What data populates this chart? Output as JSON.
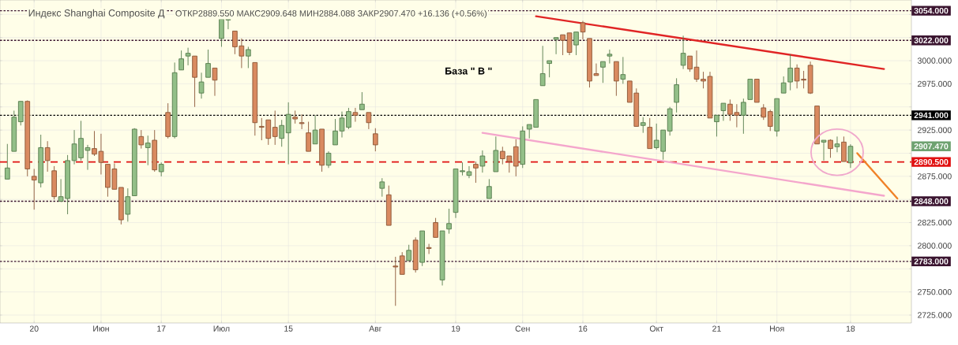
{
  "chart_data": {
    "type": "candlestick",
    "title": "Индекс Shanghai Composite Д",
    "subtitle": "ОТКР2889.550 МАКС2909.648 МИН2884.088 ЗАКР2907.470 +16.136 (+0.56%)",
    "annotations": [
      "База  \" В \"",
      "2907.470"
    ],
    "categories": [
      null,
      null,
      null,
      null,
      "20",
      null,
      null,
      null,
      null,
      null,
      null,
      null,
      null,
      null,
      "Июн",
      null,
      null,
      null,
      null,
      null,
      null,
      null,
      null,
      "17",
      null,
      null,
      null,
      null,
      null,
      null,
      null,
      null,
      "Июл",
      null,
      null,
      null,
      null,
      null,
      null,
      null,
      null,
      null,
      "15",
      null,
      null,
      null,
      null,
      null,
      null,
      null,
      null,
      null,
      null,
      null,
      null,
      "Авг",
      null,
      null,
      null,
      null,
      null,
      null,
      null,
      null,
      null,
      null,
      null,
      "19",
      null,
      null,
      null,
      null,
      null,
      null,
      null,
      null,
      null,
      "Сен",
      null,
      null,
      null,
      null,
      null,
      null,
      null,
      null,
      "16",
      null,
      null,
      null,
      null,
      null,
      null,
      null,
      null,
      null,
      null,
      "Окт",
      null,
      null,
      null,
      null,
      null,
      null,
      null,
      null,
      "21",
      null,
      null,
      null,
      null,
      null,
      null,
      null,
      null,
      "Ноя",
      null,
      null,
      null,
      null,
      null,
      null,
      null,
      null,
      null,
      null,
      "18",
      null,
      null,
      null,
      null,
      null,
      null,
      null,
      null
    ],
    "ohlc": [
      [
        2872,
        2910,
        2872,
        2884
      ],
      [
        2902,
        2946,
        2902,
        2939
      ],
      [
        2934,
        2956,
        2930,
        2956
      ],
      [
        2956,
        2957,
        2875,
        2883
      ],
      [
        2875,
        2883,
        2839,
        2871
      ],
      [
        2868,
        2920,
        2863,
        2906
      ],
      [
        2906,
        2913,
        2880,
        2892
      ],
      [
        2881,
        2886,
        2850,
        2853
      ],
      [
        2848,
        2872,
        2848,
        2853
      ],
      [
        2851,
        2898,
        2834,
        2892
      ],
      [
        2892,
        2925,
        2888,
        2910
      ],
      [
        2895,
        2935,
        2892,
        2916
      ],
      [
        2903,
        2909,
        2882,
        2906
      ],
      [
        2905,
        2924,
        2897,
        2899
      ],
      [
        2902,
        2921,
        2877,
        2890
      ],
      [
        2888,
        2888,
        2853,
        2863
      ],
      [
        2883,
        2889,
        2861,
        2861
      ],
      [
        2863,
        2863,
        2823,
        2828
      ],
      [
        2834,
        2862,
        2826,
        2853
      ],
      [
        2854,
        2927,
        2854,
        2926
      ],
      [
        2918,
        2925,
        2905,
        2909
      ],
      [
        2906,
        2919,
        2887,
        2911
      ],
      [
        2914,
        2925,
        2880,
        2882
      ],
      [
        2880,
        2890,
        2875,
        2888
      ],
      [
        2944,
        2954,
        2916,
        2918
      ],
      [
        2918,
        2998,
        2916,
        2987
      ],
      [
        2990,
        3011,
        2990,
        3002
      ],
      [
        3005,
        3014,
        2995,
        3008
      ],
      [
        3005,
        3005,
        2950,
        2982
      ],
      [
        2965,
        2987,
        2959,
        2977
      ],
      [
        2982,
        3012,
        2982,
        2997
      ],
      [
        2992,
        2992,
        2962,
        2979
      ],
      [
        3024,
        3045,
        3015,
        3045
      ],
      [
        3044,
        3045,
        3034,
        3045
      ],
      [
        3032,
        3032,
        3007,
        3015
      ],
      [
        3016,
        3024,
        2992,
        3005
      ],
      [
        3005,
        3015,
        2992,
        3012
      ],
      [
        2998,
        2998,
        2919,
        2933
      ],
      [
        2929,
        2938,
        2914,
        2928
      ],
      [
        2936,
        2936,
        2909,
        2916
      ],
      [
        2928,
        2946,
        2909,
        2918
      ],
      [
        2916,
        2936,
        2907,
        2930
      ],
      [
        2922,
        2955,
        2888,
        2942
      ],
      [
        2939,
        2946,
        2932,
        2937
      ],
      [
        2933,
        2942,
        2926,
        2932
      ],
      [
        2922,
        2934,
        2902,
        2902
      ],
      [
        2910,
        2941,
        2910,
        2925
      ],
      [
        2926,
        2926,
        2880,
        2887
      ],
      [
        2887,
        2902,
        2884,
        2900
      ],
      [
        2909,
        2937,
        2909,
        2924
      ],
      [
        2924,
        2945,
        2917,
        2938
      ],
      [
        2928,
        2949,
        2926,
        2945
      ],
      [
        2944,
        2949,
        2934,
        2941
      ],
      [
        2947,
        2966,
        2947,
        2953
      ],
      [
        2944,
        2944,
        2926,
        2933
      ],
      [
        2921,
        2927,
        2902,
        2909
      ],
      [
        2862,
        2873,
        2853,
        2869
      ],
      [
        2855,
        2865,
        2822,
        2822
      ],
      [
        2778,
        2788,
        2735,
        2777
      ],
      [
        2789,
        2793,
        2769,
        2769
      ],
      [
        2784,
        2801,
        2784,
        2795
      ],
      [
        2806,
        2809,
        2771,
        2774
      ],
      [
        2782,
        2816,
        2778,
        2816
      ],
      [
        2798,
        2802,
        2791,
        2797
      ],
      [
        2825,
        2830,
        2809,
        2809
      ],
      [
        2763,
        2816,
        2757,
        2816
      ],
      [
        2818,
        2840,
        2813,
        2824
      ],
      [
        2836,
        2883,
        2830,
        2883
      ],
      [
        2880,
        2890,
        2876,
        2881
      ],
      [
        2876,
        2886,
        2873,
        2880
      ],
      [
        2888,
        2891,
        2868,
        2884
      ],
      [
        2886,
        2903,
        2879,
        2897
      ],
      [
        2851,
        2872,
        2851,
        2864
      ],
      [
        2880,
        2918,
        2880,
        2903
      ],
      [
        2902,
        2907,
        2888,
        2894
      ],
      [
        2897,
        2897,
        2879,
        2891
      ],
      [
        2907,
        2915,
        2875,
        2886
      ],
      [
        2888,
        2929,
        2884,
        2924
      ],
      [
        2926,
        2931,
        2916,
        2931
      ],
      [
        2928,
        2958,
        2928,
        2958
      ],
      [
        2973,
        3016,
        2973,
        2986
      ],
      [
        2997,
        3000,
        2982,
        3000
      ],
      [
        3023,
        3025,
        3007,
        3025
      ],
      [
        3028,
        3028,
        3006,
        3022
      ],
      [
        3030,
        3030,
        3006,
        3009
      ],
      [
        3017,
        3031,
        3006,
        3031
      ],
      [
        3041,
        3043,
        3023,
        3031
      ],
      [
        3024,
        3024,
        2971,
        2978
      ],
      [
        2986,
        2997,
        2984,
        2984
      ],
      [
        2993,
        2999,
        2976,
        2999
      ],
      [
        3005,
        3012,
        2997,
        3007
      ],
      [
        2999,
        2999,
        2962,
        2978
      ],
      [
        2980,
        3004,
        2975,
        2985
      ],
      [
        2978,
        2978,
        2955,
        2955
      ],
      [
        2965,
        2970,
        2929,
        2929
      ],
      [
        2930,
        2939,
        2922,
        2933
      ],
      [
        2928,
        2938,
        2905,
        2905
      ],
      [
        2906,
        2932,
        2904,
        2914
      ],
      [
        2902,
        2925,
        2893,
        2925
      ],
      [
        2924,
        2950,
        2919,
        2948
      ],
      [
        2955,
        2981,
        2944,
        2974
      ],
      [
        2995,
        3027,
        2991,
        3008
      ],
      [
        3005,
        3005,
        2988,
        2991
      ],
      [
        2993,
        3011,
        2977,
        2980
      ],
      [
        2980,
        2988,
        2970,
        2978
      ],
      [
        2983,
        2988,
        2938,
        2938
      ],
      [
        2934,
        2941,
        2918,
        2941
      ],
      [
        2946,
        2954,
        2935,
        2954
      ],
      [
        2953,
        2958,
        2935,
        2942
      ],
      [
        2944,
        2953,
        2928,
        2941
      ],
      [
        2941,
        2959,
        2921,
        2955
      ],
      [
        2958,
        2980,
        2958,
        2980
      ],
      [
        2980,
        2980,
        2955,
        2955
      ],
      [
        2949,
        2953,
        2936,
        2939
      ],
      [
        2945,
        2947,
        2924,
        2929
      ],
      [
        2924,
        2959,
        2918,
        2959
      ],
      [
        2965,
        2983,
        2965,
        2976
      ],
      [
        2977,
        3007,
        2968,
        2992
      ],
      [
        2992,
        2996,
        2970,
        2978
      ],
      [
        2980,
        2989,
        2970,
        2979
      ],
      [
        2995,
        2999,
        2964,
        2965
      ],
      [
        2951,
        2951,
        2910,
        2910
      ],
      [
        2912,
        2914,
        2892,
        2914
      ],
      [
        2914,
        2915,
        2895,
        2905
      ],
      [
        2907,
        2918,
        2901,
        2910
      ],
      [
        2912,
        2918,
        2891,
        2891
      ],
      [
        2889.55,
        2909.65,
        2884.09,
        2907.47
      ],
      null,
      null,
      null,
      null,
      null,
      null,
      null,
      null
    ],
    "series": [
      {
        "type": "line",
        "color": "#e02424",
        "values": [
          null,
          null,
          null,
          null,
          null,
          null,
          null,
          null,
          null,
          null,
          null,
          null,
          null,
          null,
          null,
          null,
          null,
          null,
          null,
          null,
          null,
          null,
          null,
          null,
          null,
          null,
          null,
          null,
          null,
          null,
          null,
          null,
          null,
          null,
          null,
          null,
          null,
          null,
          null,
          null,
          null,
          null,
          null,
          null,
          null,
          null,
          null,
          null,
          null,
          null,
          null,
          null,
          null,
          null,
          null,
          null,
          null,
          null,
          null,
          null,
          null,
          null,
          null,
          null,
          null,
          null,
          null,
          null,
          null,
          null,
          null,
          null,
          null,
          null,
          null,
          null,
          null,
          null,
          null,
          3048,
          null,
          null,
          null,
          null,
          null,
          null,
          null,
          null,
          null,
          null,
          null,
          null,
          null,
          null,
          null,
          null,
          null,
          null,
          null,
          null,
          null,
          null,
          null,
          null,
          null,
          null,
          null,
          null,
          null,
          null,
          null,
          null,
          null,
          null,
          null,
          null,
          null,
          null,
          null,
          null,
          null,
          null,
          null,
          null,
          null,
          null,
          null,
          null,
          null,
          null,
          null,
          2991,
          null,
          null,
          null
        ]
      },
      {
        "type": "line",
        "color": "#f4a6cc",
        "values": [
          null,
          null,
          null,
          null,
          null,
          null,
          null,
          null,
          null,
          null,
          null,
          null,
          null,
          null,
          null,
          null,
          null,
          null,
          null,
          null,
          null,
          null,
          null,
          null,
          null,
          null,
          null,
          null,
          null,
          null,
          null,
          null,
          null,
          null,
          null,
          null,
          null,
          null,
          null,
          null,
          null,
          null,
          null,
          null,
          null,
          null,
          null,
          null,
          null,
          null,
          null,
          null,
          null,
          null,
          null,
          null,
          null,
          null,
          null,
          null,
          null,
          null,
          null,
          null,
          null,
          null,
          null,
          null,
          null,
          null,
          null,
          2922,
          null,
          null,
          null,
          null,
          null,
          null,
          null,
          null,
          null,
          null,
          null,
          null,
          null,
          null,
          null,
          null,
          null,
          null,
          null,
          null,
          null,
          null,
          null,
          null,
          null,
          null,
          null,
          null,
          null,
          null,
          null,
          null,
          null,
          null,
          null,
          null,
          null,
          null,
          null,
          null,
          null,
          null,
          null,
          null,
          null,
          null,
          null,
          null,
          null,
          null,
          null,
          null,
          null,
          null,
          null,
          null,
          null,
          null,
          null,
          2854,
          null,
          null,
          null
        ]
      },
      {
        "type": "line",
        "color": "#f08228",
        "values": [
          null,
          null,
          null,
          null,
          null,
          null,
          null,
          null,
          null,
          null,
          null,
          null,
          null,
          null,
          null,
          null,
          null,
          null,
          null,
          null,
          null,
          null,
          null,
          null,
          null,
          null,
          null,
          null,
          null,
          null,
          null,
          null,
          null,
          null,
          null,
          null,
          null,
          null,
          null,
          null,
          null,
          null,
          null,
          null,
          null,
          null,
          null,
          null,
          null,
          null,
          null,
          null,
          null,
          null,
          null,
          null,
          null,
          null,
          null,
          null,
          null,
          null,
          null,
          null,
          null,
          null,
          null,
          null,
          null,
          null,
          null,
          null,
          null,
          null,
          null,
          null,
          null,
          null,
          null,
          null,
          null,
          null,
          null,
          null,
          null,
          null,
          null,
          null,
          null,
          null,
          null,
          null,
          null,
          null,
          null,
          null,
          null,
          null,
          null,
          null,
          null,
          null,
          null,
          null,
          null,
          null,
          null,
          null,
          null,
          null,
          null,
          null,
          null,
          null,
          null,
          null,
          null,
          null,
          null,
          null,
          null,
          null,
          null,
          null,
          null,
          null,
          null,
          2900,
          null,
          null,
          null,
          null,
          null,
          2851,
          null
        ]
      }
    ],
    "ylim": [
      2716.5,
      3065.6
    ],
    "yticks": [
      {
        "value": 2725,
        "label": "2725.000"
      },
      {
        "value": 2750,
        "label": "2750.000"
      },
      {
        "value": 2775,
        "label": null
      },
      {
        "value": 2800,
        "label": "2800.000"
      },
      {
        "value": 2825,
        "label": "2825.000"
      },
      {
        "value": 2850,
        "label": null
      },
      {
        "value": 2875,
        "label": "2875.000"
      },
      {
        "value": 2900,
        "label": null
      },
      {
        "value": 2925,
        "label": "2925.000"
      },
      {
        "value": 2950,
        "label": null
      },
      {
        "value": 2975,
        "label": "2975.000"
      },
      {
        "value": 3000,
        "label": "3000.000"
      },
      {
        "value": 3025,
        "label": null
      },
      {
        "value": 3050,
        "label": null
      }
    ],
    "ref_lines": [
      {
        "axis": "y",
        "value": 3054,
        "label": "3054.000",
        "color": "#3b1530",
        "line_style": "dotted"
      },
      {
        "axis": "y",
        "value": 3022,
        "label": "3022.000",
        "color": "#3b1530",
        "line_style": "dotted"
      },
      {
        "axis": "y",
        "value": 2941,
        "label": "2941.000",
        "color": "#000000",
        "line_style": "dotted"
      },
      {
        "axis": "y",
        "value": 2890.5,
        "label": "2890.500",
        "color": "#e01010",
        "line_style": "dashed"
      },
      {
        "axis": "y",
        "value": 2848,
        "label": "2848.000",
        "color": "#3b1530",
        "line_style": "dotted"
      },
      {
        "axis": "y",
        "value": 2783,
        "label": "2783.000",
        "color": "#3b1530",
        "line_style": "dotted"
      }
    ],
    "grid": true
  }
}
